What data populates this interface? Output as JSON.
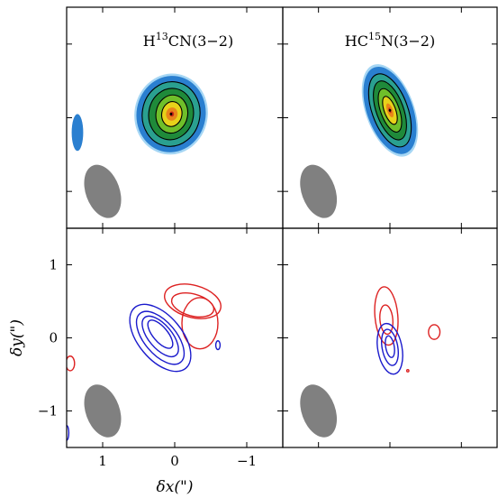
{
  "chart_data": {
    "type": "contour",
    "xlabel": "δx(\")",
    "ylabel": "δy(\")",
    "xlim": [
      1.5,
      -1.5
    ],
    "ylim": [
      -1.5,
      1.5
    ],
    "x_ticks": [
      1,
      0,
      -1
    ],
    "y_ticks": [
      -1,
      0,
      1
    ],
    "x_ticklabels": [
      "1",
      "0",
      "−1"
    ],
    "y_ticklabels": [
      "−1",
      "0",
      "1"
    ],
    "grid": false,
    "colors": {
      "blueshifted": "#1a1acc",
      "redshifted": "#dd2222",
      "beam": "#808080"
    },
    "beam": {
      "center": [
        1.0,
        -1.0
      ],
      "fwhm_major": 0.75,
      "fwhm_minor": 0.47,
      "pa_deg": 20
    },
    "panels": [
      {
        "id": "h13cn-moment0",
        "row": 0,
        "col": 0,
        "title_species": "H",
        "title_sup": "13",
        "title_rest": "CN(3−2)",
        "kind": "filled-contour",
        "peak": [
          0.05,
          0.05
        ],
        "levels": [
          {
            "cx": 0.05,
            "cy": 0.05,
            "a": 0.48,
            "b": 0.52,
            "tilt": -10,
            "color": "#2a7fd0"
          },
          {
            "cx": 0.05,
            "cy": 0.05,
            "a": 0.4,
            "b": 0.44,
            "tilt": -10,
            "color": "#2aa090"
          },
          {
            "cx": 0.05,
            "cy": 0.05,
            "a": 0.31,
            "b": 0.35,
            "tilt": -10,
            "color": "#1f8a3a"
          },
          {
            "cx": 0.04,
            "cy": 0.05,
            "a": 0.22,
            "b": 0.26,
            "tilt": -10,
            "color": "#6fbf2a"
          },
          {
            "cx": 0.04,
            "cy": 0.05,
            "a": 0.14,
            "b": 0.17,
            "tilt": -10,
            "color": "#e8d21a"
          },
          {
            "cx": 0.04,
            "cy": 0.05,
            "a": 0.08,
            "b": 0.09,
            "tilt": -10,
            "color": "#e8861a"
          },
          {
            "cx": 0.04,
            "cy": 0.05,
            "a": 0.03,
            "b": 0.035,
            "tilt": 0,
            "color": "#c8281a"
          }
        ],
        "extra_blobs": [
          {
            "cx": 1.35,
            "cy": -0.2,
            "a": 0.08,
            "b": 0.25,
            "tilt": 0,
            "color": "#2a7fd0"
          }
        ]
      },
      {
        "id": "hc15n-moment0",
        "row": 0,
        "col": 1,
        "title_species": "HC",
        "title_sup": "15",
        "title_rest": "N(3−2)",
        "kind": "filled-contour",
        "peak": [
          0.0,
          0.1
        ],
        "levels": [
          {
            "cx": 0.0,
            "cy": 0.1,
            "a": 0.32,
            "b": 0.62,
            "tilt": 20,
            "color": "#2a7fd0"
          },
          {
            "cx": 0.0,
            "cy": 0.1,
            "a": 0.25,
            "b": 0.52,
            "tilt": 20,
            "color": "#2aa090"
          },
          {
            "cx": 0.0,
            "cy": 0.1,
            "a": 0.19,
            "b": 0.42,
            "tilt": 20,
            "color": "#1f8a3a"
          },
          {
            "cx": 0.0,
            "cy": 0.1,
            "a": 0.13,
            "b": 0.31,
            "tilt": 20,
            "color": "#6fbf2a"
          },
          {
            "cx": 0.0,
            "cy": 0.1,
            "a": 0.08,
            "b": 0.2,
            "tilt": 20,
            "color": "#e8d21a"
          },
          {
            "cx": 0.0,
            "cy": 0.1,
            "a": 0.04,
            "b": 0.1,
            "tilt": 20,
            "color": "#e8861a"
          },
          {
            "cx": 0.0,
            "cy": 0.1,
            "a": 0.015,
            "b": 0.04,
            "tilt": 20,
            "color": "#c8281a"
          }
        ],
        "extra_blobs": []
      },
      {
        "id": "h13cn-channels",
        "row": 1,
        "col": 0,
        "kind": "line-contour",
        "red": [
          {
            "cx": -0.25,
            "cy": 0.5,
            "a": 0.4,
            "b": 0.22,
            "tilt": -15
          },
          {
            "cx": -0.25,
            "cy": 0.45,
            "a": 0.3,
            "b": 0.15,
            "tilt": -15
          },
          {
            "cx": -0.35,
            "cy": 0.2,
            "a": 0.25,
            "b": 0.35,
            "tilt": 0
          },
          {
            "cx": 1.45,
            "cy": -0.35,
            "a": 0.06,
            "b": 0.1,
            "tilt": 0
          }
        ],
        "blue": [
          {
            "cx": 0.2,
            "cy": 0.0,
            "a": 0.55,
            "b": 0.3,
            "tilt": -50
          },
          {
            "cx": 0.2,
            "cy": 0.0,
            "a": 0.44,
            "b": 0.22,
            "tilt": -50
          },
          {
            "cx": 0.2,
            "cy": 0.02,
            "a": 0.34,
            "b": 0.16,
            "tilt": -50
          },
          {
            "cx": 0.2,
            "cy": 0.05,
            "a": 0.24,
            "b": 0.1,
            "tilt": -50
          },
          {
            "cx": -0.6,
            "cy": -0.1,
            "a": 0.03,
            "b": 0.06,
            "tilt": 0
          },
          {
            "cx": 1.5,
            "cy": -1.3,
            "a": 0.03,
            "b": 0.1,
            "tilt": 0
          }
        ]
      },
      {
        "id": "hc15n-channels",
        "row": 1,
        "col": 1,
        "kind": "line-contour",
        "red": [
          {
            "cx": 0.05,
            "cy": 0.3,
            "a": 0.16,
            "b": 0.4,
            "tilt": 5
          },
          {
            "cx": 0.05,
            "cy": 0.25,
            "a": 0.09,
            "b": 0.2,
            "tilt": 5
          },
          {
            "cx": -0.62,
            "cy": 0.08,
            "a": 0.08,
            "b": 0.1,
            "tilt": 0
          },
          {
            "cx": -0.25,
            "cy": -0.45,
            "a": 0.015,
            "b": 0.015,
            "tilt": 0
          }
        ],
        "blue": [
          {
            "cx": 0.0,
            "cy": -0.15,
            "a": 0.17,
            "b": 0.35,
            "tilt": 10
          },
          {
            "cx": 0.0,
            "cy": -0.13,
            "a": 0.11,
            "b": 0.25,
            "tilt": 10
          },
          {
            "cx": 0.0,
            "cy": -0.12,
            "a": 0.06,
            "b": 0.15,
            "tilt": 10
          }
        ]
      }
    ]
  }
}
